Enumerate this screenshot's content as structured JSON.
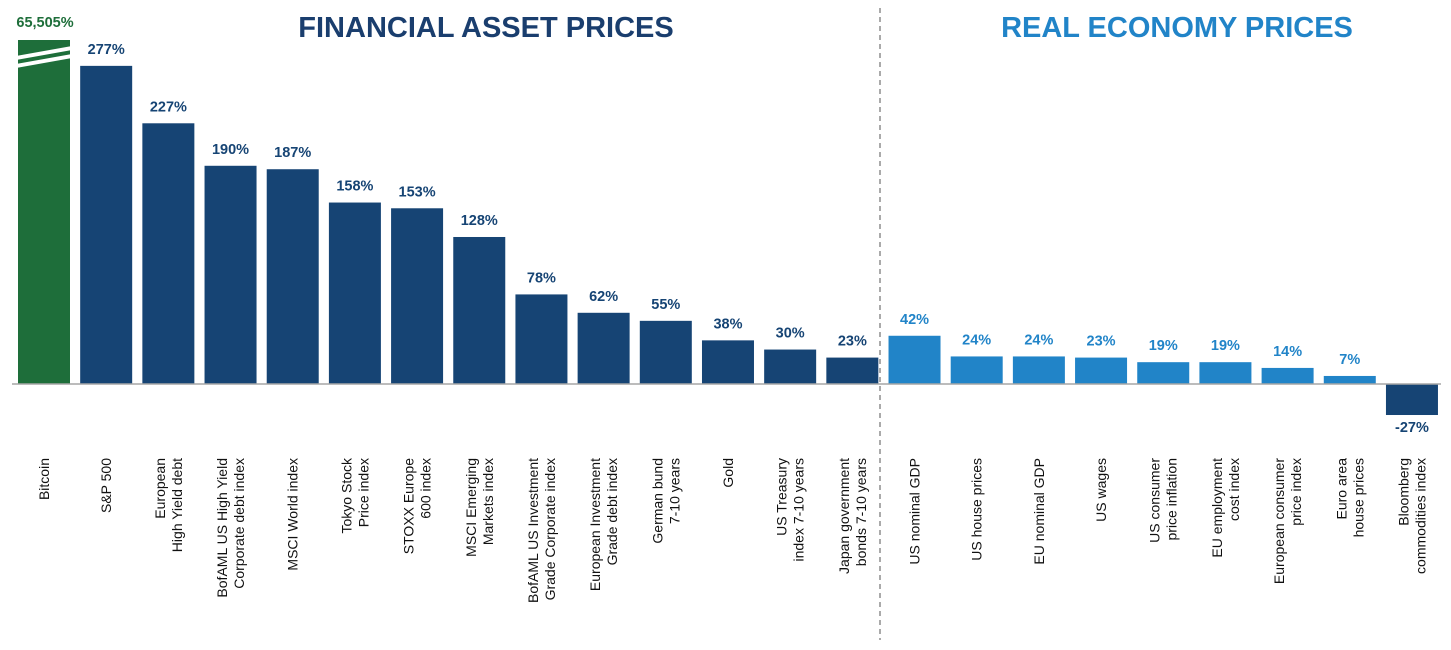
{
  "chart_data": {
    "type": "bar",
    "sections": [
      {
        "title": "FINANCIAL  ASSET PRICES",
        "color": "#1a3e6e"
      },
      {
        "title": "REAL ECONOMY PRICES",
        "color": "#2184c8"
      }
    ],
    "bars": [
      {
        "value_label": "65,505%",
        "value": 65505,
        "lines": [
          "Bitcoin"
        ],
        "color": "#1e6e3a",
        "group": "financial",
        "axis_break": true
      },
      {
        "value_label": "277%",
        "value": 277,
        "lines": [
          "S&P 500"
        ],
        "color": "#164474",
        "group": "financial"
      },
      {
        "value_label": "227%",
        "value": 227,
        "lines": [
          "European",
          "High Yield debt"
        ],
        "color": "#164474",
        "group": "financial"
      },
      {
        "value_label": "190%",
        "value": 190,
        "lines": [
          "BofAML US High Yield",
          "Corporate debt index"
        ],
        "color": "#164474",
        "group": "financial"
      },
      {
        "value_label": "187%",
        "value": 187,
        "lines": [
          "MSCI World index"
        ],
        "color": "#164474",
        "group": "financial"
      },
      {
        "value_label": "158%",
        "value": 158,
        "lines": [
          "Tokyo Stock",
          "Price index"
        ],
        "color": "#164474",
        "group": "financial"
      },
      {
        "value_label": "153%",
        "value": 153,
        "lines": [
          "STOXX Europe",
          "600 index"
        ],
        "color": "#164474",
        "group": "financial"
      },
      {
        "value_label": "128%",
        "value": 128,
        "lines": [
          "MSCI Emerging",
          "Markets index"
        ],
        "color": "#164474",
        "group": "financial"
      },
      {
        "value_label": "78%",
        "value": 78,
        "lines": [
          "BofAML US Investment",
          "Grade Corporate index"
        ],
        "color": "#164474",
        "group": "financial"
      },
      {
        "value_label": "62%",
        "value": 62,
        "lines": [
          "European Investment",
          "Grade debt index"
        ],
        "color": "#164474",
        "group": "financial"
      },
      {
        "value_label": "55%",
        "value": 55,
        "lines": [
          "German bund",
          "7-10 years"
        ],
        "color": "#164474",
        "group": "financial"
      },
      {
        "value_label": "38%",
        "value": 38,
        "lines": [
          "Gold"
        ],
        "color": "#164474",
        "group": "financial"
      },
      {
        "value_label": "30%",
        "value": 30,
        "lines": [
          "US Treasury",
          "index 7-10 years"
        ],
        "color": "#164474",
        "group": "financial"
      },
      {
        "value_label": "23%",
        "value": 23,
        "lines": [
          "Japan government",
          "bonds 7-10 years"
        ],
        "color": "#164474",
        "group": "financial"
      },
      {
        "value_label": "42%",
        "value": 42,
        "lines": [
          "US nominal GDP"
        ],
        "color": "#2184c8",
        "group": "real"
      },
      {
        "value_label": "24%",
        "value": 24,
        "lines": [
          "US house prices"
        ],
        "color": "#2184c8",
        "group": "real"
      },
      {
        "value_label": "24%",
        "value": 24,
        "lines": [
          "EU nominal GDP"
        ],
        "color": "#2184c8",
        "group": "real"
      },
      {
        "value_label": "23%",
        "value": 23,
        "lines": [
          "US wages"
        ],
        "color": "#2184c8",
        "group": "real"
      },
      {
        "value_label": "19%",
        "value": 19,
        "lines": [
          "US consumer",
          "price inflation"
        ],
        "color": "#2184c8",
        "group": "real"
      },
      {
        "value_label": "19%",
        "value": 19,
        "lines": [
          "EU employment",
          "cost index"
        ],
        "color": "#2184c8",
        "group": "real"
      },
      {
        "value_label": "14%",
        "value": 14,
        "lines": [
          "European consumer",
          "price index"
        ],
        "color": "#2184c8",
        "group": "real"
      },
      {
        "value_label": "7%",
        "value": 7,
        "lines": [
          "Euro area",
          "house prices"
        ],
        "color": "#2184c8",
        "group": "real"
      },
      {
        "value_label": "-27%",
        "value": -27,
        "lines": [
          "Bloomberg",
          "commodities index"
        ],
        "color": "#164474",
        "group": "real"
      }
    ],
    "ylabel": "",
    "xlabel": "",
    "grid": false,
    "legend": "none"
  }
}
